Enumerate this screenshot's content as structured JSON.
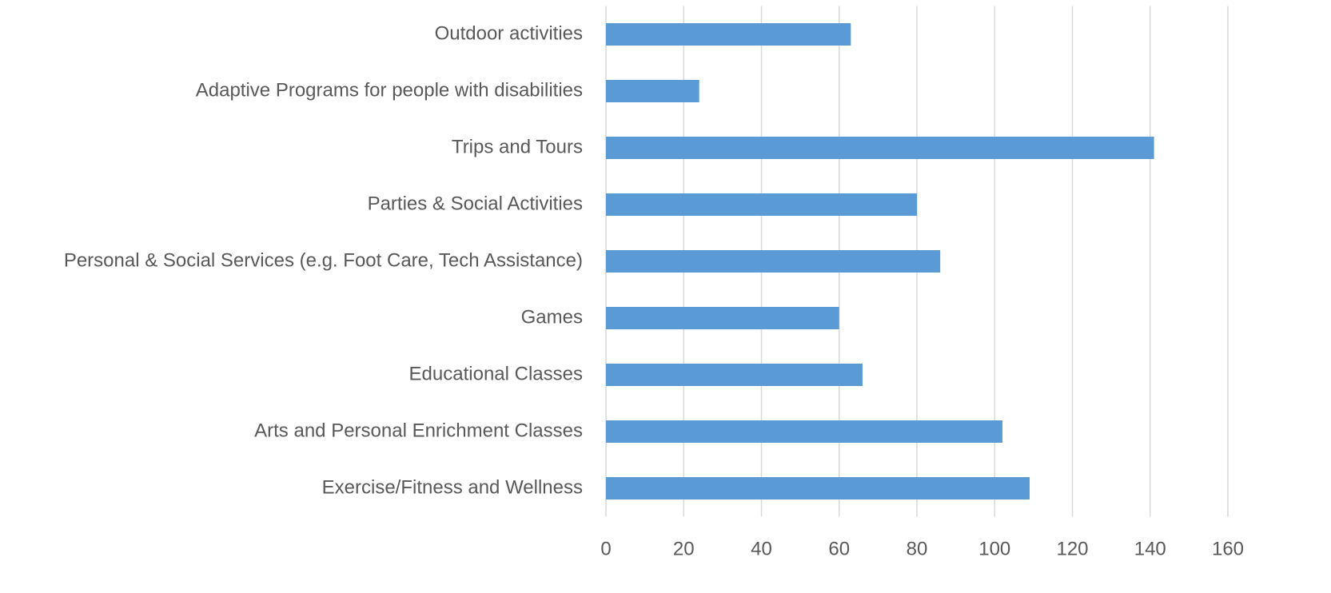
{
  "chart_data": {
    "type": "barh",
    "categories": [
      "Outdoor activities",
      "Adaptive Programs for people with disabilities",
      "Trips and Tours",
      "Parties & Social Activities",
      "Personal & Social Services (e.g. Foot Care, Tech Assistance)",
      "Games",
      "Educational Classes",
      "Arts and Personal Enrichment Classes",
      "Exercise/Fitness and Wellness"
    ],
    "values": [
      63,
      24,
      141,
      80,
      86,
      60,
      66,
      102,
      109
    ],
    "color": "#5b9bd5",
    "xlim": [
      0,
      160
    ],
    "xticks": [
      0,
      20,
      40,
      60,
      80,
      100,
      120,
      140,
      160
    ],
    "grid": true
  }
}
